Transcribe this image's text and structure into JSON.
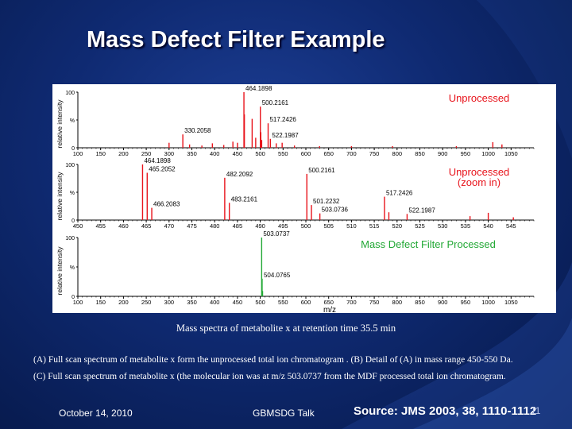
{
  "slide": {
    "title": "Mass Defect Filter Example",
    "caption": "Mass spectra of metabolite x at retention time 35.5 min",
    "caption_a": "(A) Full scan spectrum of metabolite x form the unprocessed  total ion chromatogram . (B) Detail of (A) in mass range 450-550 Da.",
    "caption_c": "(C) Full scan spectrum of metabolite x (the molecular ion was at m/z 503.0737 from the MDF processed total ion chromatogram.",
    "footer_date": "October 14, 2010",
    "footer_event": "GBMSDG Talk",
    "footer_source": "Source: JMS 2003, 38, 1110-1112",
    "page_number": "11"
  },
  "colors": {
    "background": "#0f2a72",
    "peak": "#e8141c",
    "processed_peak": "#22a835",
    "unprocessed_label": "#e8141c",
    "processed_label": "#22a835"
  },
  "chart_data": [
    {
      "type": "bar",
      "panel": "A",
      "title": "Unprocessed",
      "xlabel": "",
      "ylabel": "relative intensity",
      "xlim": [
        100,
        1100
      ],
      "ylim": [
        0,
        100
      ],
      "x_ticks": [
        "100",
        "150",
        "200",
        "250",
        "300",
        "350",
        "400",
        "450",
        "500",
        "550",
        "600",
        "650",
        "700",
        "750",
        "800",
        "850",
        "900",
        "950",
        "1000",
        "1050"
      ],
      "y_ticks": [
        "0",
        "%",
        "100"
      ],
      "peaks": [
        {
          "mz": 330.2058,
          "intensity": 24,
          "label": "330.2058"
        },
        {
          "mz": 300.0,
          "intensity": 9
        },
        {
          "mz": 345.0,
          "intensity": 6
        },
        {
          "mz": 372.0,
          "intensity": 4
        },
        {
          "mz": 395.0,
          "intensity": 8
        },
        {
          "mz": 420.0,
          "intensity": 5
        },
        {
          "mz": 440.0,
          "intensity": 11
        },
        {
          "mz": 450.0,
          "intensity": 9
        },
        {
          "mz": 464.1898,
          "intensity": 100,
          "label": "464.1898"
        },
        {
          "mz": 465.2,
          "intensity": 60
        },
        {
          "mz": 482.2,
          "intensity": 52
        },
        {
          "mz": 490.0,
          "intensity": 18
        },
        {
          "mz": 500.2161,
          "intensity": 74,
          "label": "500.2161"
        },
        {
          "mz": 501.2,
          "intensity": 28
        },
        {
          "mz": 503.1,
          "intensity": 14
        },
        {
          "mz": 517.2426,
          "intensity": 44,
          "label": "517.2426"
        },
        {
          "mz": 522.1987,
          "intensity": 16,
          "label": "522.1987"
        },
        {
          "mz": 535.0,
          "intensity": 8
        },
        {
          "mz": 548.0,
          "intensity": 9
        },
        {
          "mz": 575.0,
          "intensity": 4
        },
        {
          "mz": 630.0,
          "intensity": 3
        },
        {
          "mz": 700.0,
          "intensity": 3
        },
        {
          "mz": 790.0,
          "intensity": 3
        },
        {
          "mz": 930.0,
          "intensity": 3
        },
        {
          "mz": 1010.0,
          "intensity": 10
        },
        {
          "mz": 1030.0,
          "intensity": 6
        }
      ]
    },
    {
      "type": "bar",
      "panel": "B",
      "title": "Unprocessed (zoom in)",
      "xlabel": "",
      "ylabel": "relative intensity",
      "xlim": [
        450,
        550
      ],
      "ylim": [
        0,
        100
      ],
      "x_ticks": [
        "450",
        "455",
        "460",
        "465",
        "470",
        "475",
        "480",
        "485",
        "490",
        "495",
        "500",
        "505",
        "510",
        "515",
        "520",
        "525",
        "530",
        "535",
        "540",
        "545"
      ],
      "y_ticks": [
        "0",
        "%",
        "100"
      ],
      "peaks": [
        {
          "mz": 464.1898,
          "intensity": 100,
          "label": "464.1898"
        },
        {
          "mz": 465.2052,
          "intensity": 85,
          "label": "465.2052"
        },
        {
          "mz": 466.2083,
          "intensity": 22,
          "label": "466.2083"
        },
        {
          "mz": 482.2092,
          "intensity": 76,
          "label": "482.2092"
        },
        {
          "mz": 483.2161,
          "intensity": 31,
          "label": "483.2161"
        },
        {
          "mz": 500.2161,
          "intensity": 83,
          "label": "500.2161"
        },
        {
          "mz": 501.2232,
          "intensity": 27,
          "label": "501.2232"
        },
        {
          "mz": 503.0736,
          "intensity": 12,
          "label": "503.0736"
        },
        {
          "mz": 517.2426,
          "intensity": 42,
          "label": "517.2426"
        },
        {
          "mz": 518.2,
          "intensity": 14
        },
        {
          "mz": 522.1987,
          "intensity": 11,
          "label": "522.1987"
        },
        {
          "mz": 536.0,
          "intensity": 7
        },
        {
          "mz": 540.0,
          "intensity": 13
        },
        {
          "mz": 545.5,
          "intensity": 5
        }
      ]
    },
    {
      "type": "bar",
      "panel": "C",
      "title": "Mass Defect Filter Processed",
      "xlabel": "m/z",
      "ylabel": "relative intensity",
      "xlim": [
        100,
        1100
      ],
      "ylim": [
        0,
        100
      ],
      "x_ticks": [
        "100",
        "150",
        "200",
        "250",
        "300",
        "350",
        "400",
        "450",
        "500",
        "550",
        "600",
        "650",
        "700",
        "750",
        "800",
        "850",
        "900",
        "950",
        "1000",
        "1050"
      ],
      "y_ticks": [
        "0",
        "%",
        "100"
      ],
      "peaks": [
        {
          "mz": 503.0737,
          "intensity": 100,
          "label": "503.0737"
        },
        {
          "mz": 504.0765,
          "intensity": 30,
          "label": "504.0765"
        },
        {
          "mz": 505.07,
          "intensity": 9
        }
      ]
    }
  ]
}
